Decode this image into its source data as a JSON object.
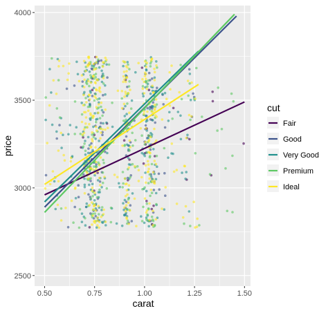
{
  "chart_data": {
    "type": "scatter",
    "title": "",
    "xlabel": "carat",
    "ylabel": "price",
    "xlim": [
      0.45,
      1.53
    ],
    "ylim": [
      2440,
      4040
    ],
    "x_ticks": [
      0.5,
      0.75,
      1.0,
      1.25,
      1.5
    ],
    "x_tick_labels": [
      "0.50",
      "0.75",
      "1.00",
      "1.25",
      "1.50"
    ],
    "y_ticks": [
      2500,
      3000,
      3500,
      4000
    ],
    "y_tick_labels": [
      "2500",
      "3000",
      "3500",
      "4000"
    ],
    "panel_background": "#ebebeb",
    "grid": true,
    "legend": {
      "title": "cut",
      "position": "right",
      "entries": [
        "Fair",
        "Good",
        "Very Good",
        "Premium",
        "Ideal"
      ]
    },
    "series": [
      {
        "name": "Fair",
        "color": "#440154",
        "x_range": [
          0.5,
          1.5
        ],
        "points_range_x": [
          0.58,
          1.5
        ],
        "fit": {
          "x": [
            0.5,
            1.5
          ],
          "y": [
            2960,
            3490
          ]
        }
      },
      {
        "name": "Good",
        "color": "#3b528b",
        "x_range": [
          0.5,
          1.46
        ],
        "points_range_x": [
          0.5,
          1.25
        ],
        "fit": {
          "x": [
            0.5,
            1.46
          ],
          "y": [
            2890,
            3980
          ]
        }
      },
      {
        "name": "Very Good",
        "color": "#21908c",
        "x_range": [
          0.5,
          1.27
        ],
        "points_range_x": [
          0.5,
          1.27
        ],
        "fit": {
          "x": [
            0.5,
            1.27
          ],
          "y": [
            2920,
            3780
          ]
        }
      },
      {
        "name": "Premium",
        "color": "#5dc863",
        "x_range": [
          0.5,
          1.45
        ],
        "points_range_x": [
          0.5,
          1.45
        ],
        "fit": {
          "x": [
            0.5,
            1.45
          ],
          "y": [
            2860,
            3990
          ]
        }
      },
      {
        "name": "Ideal",
        "color": "#fde725",
        "x_range": [
          0.5,
          1.27
        ],
        "points_range_x": [
          0.5,
          1.27
        ],
        "fit": {
          "x": [
            0.5,
            1.27
          ],
          "y": [
            3020,
            3590
          ]
        }
      }
    ],
    "points": {
      "y_range": [
        2770,
        3750
      ],
      "alpha": 0.6,
      "jitter": true
    }
  }
}
